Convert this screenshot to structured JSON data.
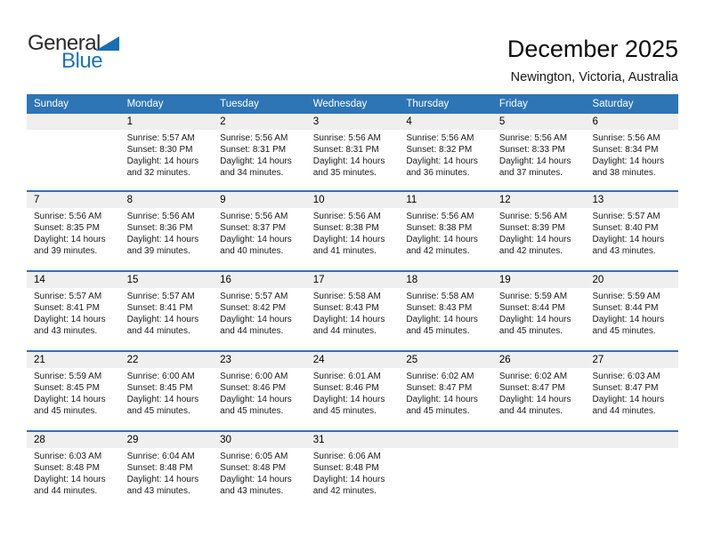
{
  "logo": {
    "general": "General",
    "blue": "Blue"
  },
  "header": {
    "title": "December 2025",
    "subtitle": "Newington, Victoria, Australia"
  },
  "colors": {
    "header_bar_blue": "#2e75b6",
    "week_separator_blue": "#2e75b6",
    "day_number_band_gray": "#efefef",
    "logo_blue": "#1b75bc",
    "weekday_text": "#ffffff",
    "body_text": "#1a1a1a"
  },
  "weekday_headers": [
    "Sunday",
    "Monday",
    "Tuesday",
    "Wednesday",
    "Thursday",
    "Friday",
    "Saturday"
  ],
  "weeks": [
    [
      {
        "day": "",
        "lines": []
      },
      {
        "day": "1",
        "lines": [
          "Sunrise: 5:57 AM",
          "Sunset: 8:30 PM",
          "Daylight: 14 hours",
          "and 32 minutes."
        ]
      },
      {
        "day": "2",
        "lines": [
          "Sunrise: 5:56 AM",
          "Sunset: 8:31 PM",
          "Daylight: 14 hours",
          "and 34 minutes."
        ]
      },
      {
        "day": "3",
        "lines": [
          "Sunrise: 5:56 AM",
          "Sunset: 8:31 PM",
          "Daylight: 14 hours",
          "and 35 minutes."
        ]
      },
      {
        "day": "4",
        "lines": [
          "Sunrise: 5:56 AM",
          "Sunset: 8:32 PM",
          "Daylight: 14 hours",
          "and 36 minutes."
        ]
      },
      {
        "day": "5",
        "lines": [
          "Sunrise: 5:56 AM",
          "Sunset: 8:33 PM",
          "Daylight: 14 hours",
          "and 37 minutes."
        ]
      },
      {
        "day": "6",
        "lines": [
          "Sunrise: 5:56 AM",
          "Sunset: 8:34 PM",
          "Daylight: 14 hours",
          "and 38 minutes."
        ]
      }
    ],
    [
      {
        "day": "7",
        "lines": [
          "Sunrise: 5:56 AM",
          "Sunset: 8:35 PM",
          "Daylight: 14 hours",
          "and 39 minutes."
        ]
      },
      {
        "day": "8",
        "lines": [
          "Sunrise: 5:56 AM",
          "Sunset: 8:36 PM",
          "Daylight: 14 hours",
          "and 39 minutes."
        ]
      },
      {
        "day": "9",
        "lines": [
          "Sunrise: 5:56 AM",
          "Sunset: 8:37 PM",
          "Daylight: 14 hours",
          "and 40 minutes."
        ]
      },
      {
        "day": "10",
        "lines": [
          "Sunrise: 5:56 AM",
          "Sunset: 8:38 PM",
          "Daylight: 14 hours",
          "and 41 minutes."
        ]
      },
      {
        "day": "11",
        "lines": [
          "Sunrise: 5:56 AM",
          "Sunset: 8:38 PM",
          "Daylight: 14 hours",
          "and 42 minutes."
        ]
      },
      {
        "day": "12",
        "lines": [
          "Sunrise: 5:56 AM",
          "Sunset: 8:39 PM",
          "Daylight: 14 hours",
          "and 42 minutes."
        ]
      },
      {
        "day": "13",
        "lines": [
          "Sunrise: 5:57 AM",
          "Sunset: 8:40 PM",
          "Daylight: 14 hours",
          "and 43 minutes."
        ]
      }
    ],
    [
      {
        "day": "14",
        "lines": [
          "Sunrise: 5:57 AM",
          "Sunset: 8:41 PM",
          "Daylight: 14 hours",
          "and 43 minutes."
        ]
      },
      {
        "day": "15",
        "lines": [
          "Sunrise: 5:57 AM",
          "Sunset: 8:41 PM",
          "Daylight: 14 hours",
          "and 44 minutes."
        ]
      },
      {
        "day": "16",
        "lines": [
          "Sunrise: 5:57 AM",
          "Sunset: 8:42 PM",
          "Daylight: 14 hours",
          "and 44 minutes."
        ]
      },
      {
        "day": "17",
        "lines": [
          "Sunrise: 5:58 AM",
          "Sunset: 8:43 PM",
          "Daylight: 14 hours",
          "and 44 minutes."
        ]
      },
      {
        "day": "18",
        "lines": [
          "Sunrise: 5:58 AM",
          "Sunset: 8:43 PM",
          "Daylight: 14 hours",
          "and 45 minutes."
        ]
      },
      {
        "day": "19",
        "lines": [
          "Sunrise: 5:59 AM",
          "Sunset: 8:44 PM",
          "Daylight: 14 hours",
          "and 45 minutes."
        ]
      },
      {
        "day": "20",
        "lines": [
          "Sunrise: 5:59 AM",
          "Sunset: 8:44 PM",
          "Daylight: 14 hours",
          "and 45 minutes."
        ]
      }
    ],
    [
      {
        "day": "21",
        "lines": [
          "Sunrise: 5:59 AM",
          "Sunset: 8:45 PM",
          "Daylight: 14 hours",
          "and 45 minutes."
        ]
      },
      {
        "day": "22",
        "lines": [
          "Sunrise: 6:00 AM",
          "Sunset: 8:45 PM",
          "Daylight: 14 hours",
          "and 45 minutes."
        ]
      },
      {
        "day": "23",
        "lines": [
          "Sunrise: 6:00 AM",
          "Sunset: 8:46 PM",
          "Daylight: 14 hours",
          "and 45 minutes."
        ]
      },
      {
        "day": "24",
        "lines": [
          "Sunrise: 6:01 AM",
          "Sunset: 8:46 PM",
          "Daylight: 14 hours",
          "and 45 minutes."
        ]
      },
      {
        "day": "25",
        "lines": [
          "Sunrise: 6:02 AM",
          "Sunset: 8:47 PM",
          "Daylight: 14 hours",
          "and 45 minutes."
        ]
      },
      {
        "day": "26",
        "lines": [
          "Sunrise: 6:02 AM",
          "Sunset: 8:47 PM",
          "Daylight: 14 hours",
          "and 44 minutes."
        ]
      },
      {
        "day": "27",
        "lines": [
          "Sunrise: 6:03 AM",
          "Sunset: 8:47 PM",
          "Daylight: 14 hours",
          "and 44 minutes."
        ]
      }
    ],
    [
      {
        "day": "28",
        "lines": [
          "Sunrise: 6:03 AM",
          "Sunset: 8:48 PM",
          "Daylight: 14 hours",
          "and 44 minutes."
        ]
      },
      {
        "day": "29",
        "lines": [
          "Sunrise: 6:04 AM",
          "Sunset: 8:48 PM",
          "Daylight: 14 hours",
          "and 43 minutes."
        ]
      },
      {
        "day": "30",
        "lines": [
          "Sunrise: 6:05 AM",
          "Sunset: 8:48 PM",
          "Daylight: 14 hours",
          "and 43 minutes."
        ]
      },
      {
        "day": "31",
        "lines": [
          "Sunrise: 6:06 AM",
          "Sunset: 8:48 PM",
          "Daylight: 14 hours",
          "and 42 minutes."
        ]
      },
      {
        "day": "",
        "lines": []
      },
      {
        "day": "",
        "lines": []
      },
      {
        "day": "",
        "lines": []
      }
    ]
  ]
}
